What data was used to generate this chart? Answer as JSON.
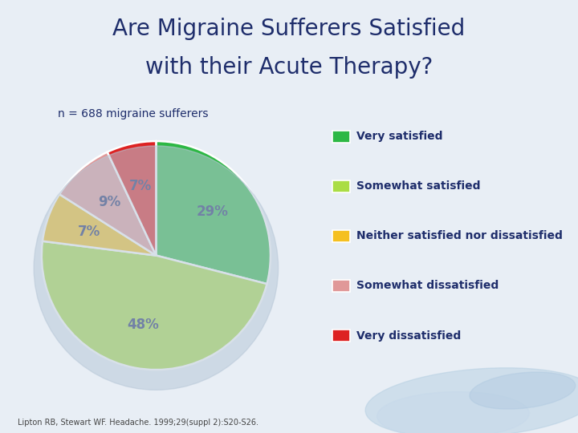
{
  "title_line1": "Are Migraine Sufferers Satisfied",
  "title_line2": "with their Acute Therapy?",
  "subtitle": "n = 688 migraine sufferers",
  "footnote": "Lipton RB, Stewart WF. Headache. 1999;29(suppl 2):S20-S26.",
  "labels": [
    "Very satisfied",
    "Somewhat satisfied",
    "Neither satisfied nor dissatisfied",
    "Somewhat dissatisfied",
    "Very dissatisfied"
  ],
  "values": [
    29,
    48,
    7,
    9,
    7
  ],
  "colors": [
    "#2db844",
    "#aadd44",
    "#f5c020",
    "#e09898",
    "#dd2222"
  ],
  "pct_labels": [
    "29%",
    "48%",
    "7%",
    "9%",
    "7%"
  ],
  "bg_color": "#e8eef5",
  "title_color": "#1e2d6b",
  "subtitle_color": "#1e2d6b",
  "legend_color": "#1e2d6b",
  "divider_color": "#a0b8cc",
  "startangle": 90
}
